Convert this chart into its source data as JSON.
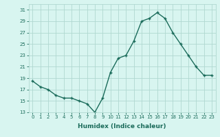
{
  "x": [
    0,
    1,
    2,
    3,
    4,
    5,
    6,
    7,
    8,
    9,
    10,
    11,
    12,
    13,
    14,
    15,
    16,
    17,
    18,
    19,
    20,
    21,
    22,
    23
  ],
  "y": [
    18.5,
    17.5,
    17.0,
    16.0,
    15.5,
    15.5,
    15.0,
    14.5,
    13.0,
    15.5,
    20.0,
    22.5,
    23.0,
    25.5,
    29.0,
    29.5,
    30.5,
    29.5,
    27.0,
    25.0,
    23.0,
    21.0,
    19.5,
    19.5
  ],
  "line_color": "#1a6b5a",
  "marker": "+",
  "marker_size": 3,
  "bg_color": "#d8f5f0",
  "grid_color": "#b0d8d0",
  "xlabel": "Humidex (Indice chaleur)",
  "ylim": [
    13,
    32
  ],
  "xlim": [
    -0.5,
    23.5
  ],
  "yticks": [
    13,
    15,
    17,
    19,
    21,
    23,
    25,
    27,
    29,
    31
  ],
  "xticks": [
    0,
    1,
    2,
    3,
    4,
    5,
    6,
    7,
    8,
    9,
    10,
    11,
    12,
    13,
    14,
    15,
    16,
    17,
    18,
    19,
    20,
    21,
    22,
    23
  ],
  "tick_fontsize": 5,
  "xlabel_fontsize": 6.5,
  "linewidth": 1.0,
  "markeredgewidth": 1.0
}
